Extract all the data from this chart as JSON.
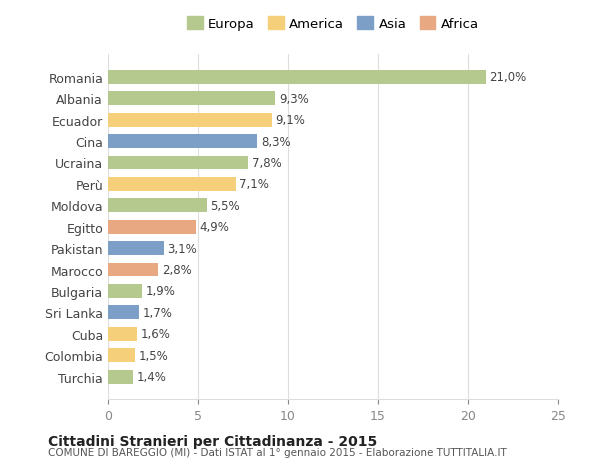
{
  "categories": [
    "Romania",
    "Albania",
    "Ecuador",
    "Cina",
    "Ucraina",
    "Perù",
    "Moldova",
    "Egitto",
    "Pakistan",
    "Marocco",
    "Bulgaria",
    "Sri Lanka",
    "Cuba",
    "Colombia",
    "Turchia"
  ],
  "values": [
    21.0,
    9.3,
    9.1,
    8.3,
    7.8,
    7.1,
    5.5,
    4.9,
    3.1,
    2.8,
    1.9,
    1.7,
    1.6,
    1.5,
    1.4
  ],
  "labels": [
    "21,0%",
    "9,3%",
    "9,1%",
    "8,3%",
    "7,8%",
    "7,1%",
    "5,5%",
    "4,9%",
    "3,1%",
    "2,8%",
    "1,9%",
    "1,7%",
    "1,6%",
    "1,5%",
    "1,4%"
  ],
  "continents": [
    "Europa",
    "Europa",
    "America",
    "Asia",
    "Europa",
    "America",
    "Europa",
    "Africa",
    "Asia",
    "Africa",
    "Europa",
    "Asia",
    "America",
    "America",
    "Europa"
  ],
  "colors": {
    "Europa": "#b5c98e",
    "America": "#f5cf7a",
    "Asia": "#7b9fc7",
    "Africa": "#e8a882"
  },
  "legend_order": [
    "Europa",
    "America",
    "Asia",
    "Africa"
  ],
  "title": "Cittadini Stranieri per Cittadinanza - 2015",
  "subtitle": "COMUNE DI BAREGGIO (MI) - Dati ISTAT al 1° gennaio 2015 - Elaborazione TUTTITALIA.IT",
  "xlim": [
    0,
    25
  ],
  "xticks": [
    0,
    5,
    10,
    15,
    20,
    25
  ],
  "background_color": "#ffffff",
  "grid_color": "#dddddd"
}
